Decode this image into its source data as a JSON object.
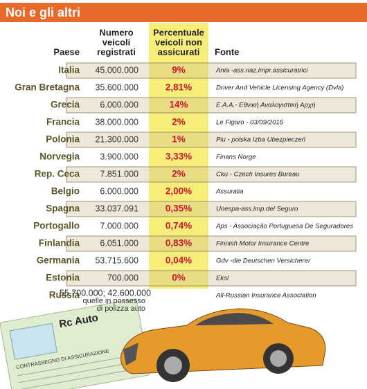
{
  "header": {
    "title": "Noi e gli altri"
  },
  "table": {
    "columns": {
      "country": [
        "Paese"
      ],
      "vehicles": [
        "Numero",
        "veicoli",
        "registrati"
      ],
      "percent": [
        "Percentuale",
        "veicoli non",
        "assicurati"
      ],
      "source": [
        "Fonte"
      ]
    },
    "rows": [
      {
        "country": "Italia",
        "vehicles": "45.000.000",
        "percent": "9%",
        "source": "Ania -ass.naz.impr.assicuratrici"
      },
      {
        "country": "Gran Bretagna",
        "vehicles": "35.600.000",
        "percent": "2,81%",
        "source": "Driver And Vehicle Licensing Agency (Dvla)"
      },
      {
        "country": "Grecia",
        "vehicles": "6.000.000",
        "percent": "14%",
        "source": "E.A.A.- Εθνική Αναλογιστική Αρχή"
      },
      {
        "country": "Francia",
        "vehicles": "38.000.000",
        "percent": "2%",
        "source": "Le Figaro - 03/09/2015"
      },
      {
        "country": "Polonia",
        "vehicles": "21.300.000",
        "percent": "1%",
        "source": "Piu - polska Izba Ubezpieczeń"
      },
      {
        "country": "Norvegia",
        "vehicles": "3.900.000",
        "percent": "3,33%",
        "source": "Finans Norge"
      },
      {
        "country": "Rep. Ceca",
        "vehicles": "7.851.000",
        "percent": "2%",
        "source": "Cku - Czech Insures Bureau"
      },
      {
        "country": "Belgio",
        "vehicles": "6.000.000",
        "percent": "2,00%",
        "source": "Assuralia"
      },
      {
        "country": "Spagna",
        "vehicles": "33.037.091",
        "percent": "0,35%",
        "source": "Unespa-ass.imp.del Seguro"
      },
      {
        "country": "Portogallo",
        "vehicles": "7.000.000",
        "percent": "0,74%",
        "source": "Aps - Associação Portuguesa De Seguradores"
      },
      {
        "country": "Finlandia",
        "vehicles": "6.051.000",
        "percent": "0,83%",
        "source": "Finnish Motor Insurance Centre"
      },
      {
        "country": "Germania",
        "vehicles": "53.715.600",
        "percent": "0,04%",
        "source": "Gdv -die Deutschen Versicherer"
      },
      {
        "country": "Estonia",
        "vehicles": "700.000",
        "percent": "0%",
        "source": "Eksl"
      },
      {
        "country": "Russia",
        "vehicles": [
          "55.700.000; 42.600.000",
          "quelle in possesso",
          "di polizza auto"
        ],
        "source": "All-Russian Insurance Association"
      }
    ]
  },
  "image": {
    "card_title": "Rc Auto",
    "card_subtitle": "CONTRASSEGNO DI ASSICURAZIONE"
  }
}
